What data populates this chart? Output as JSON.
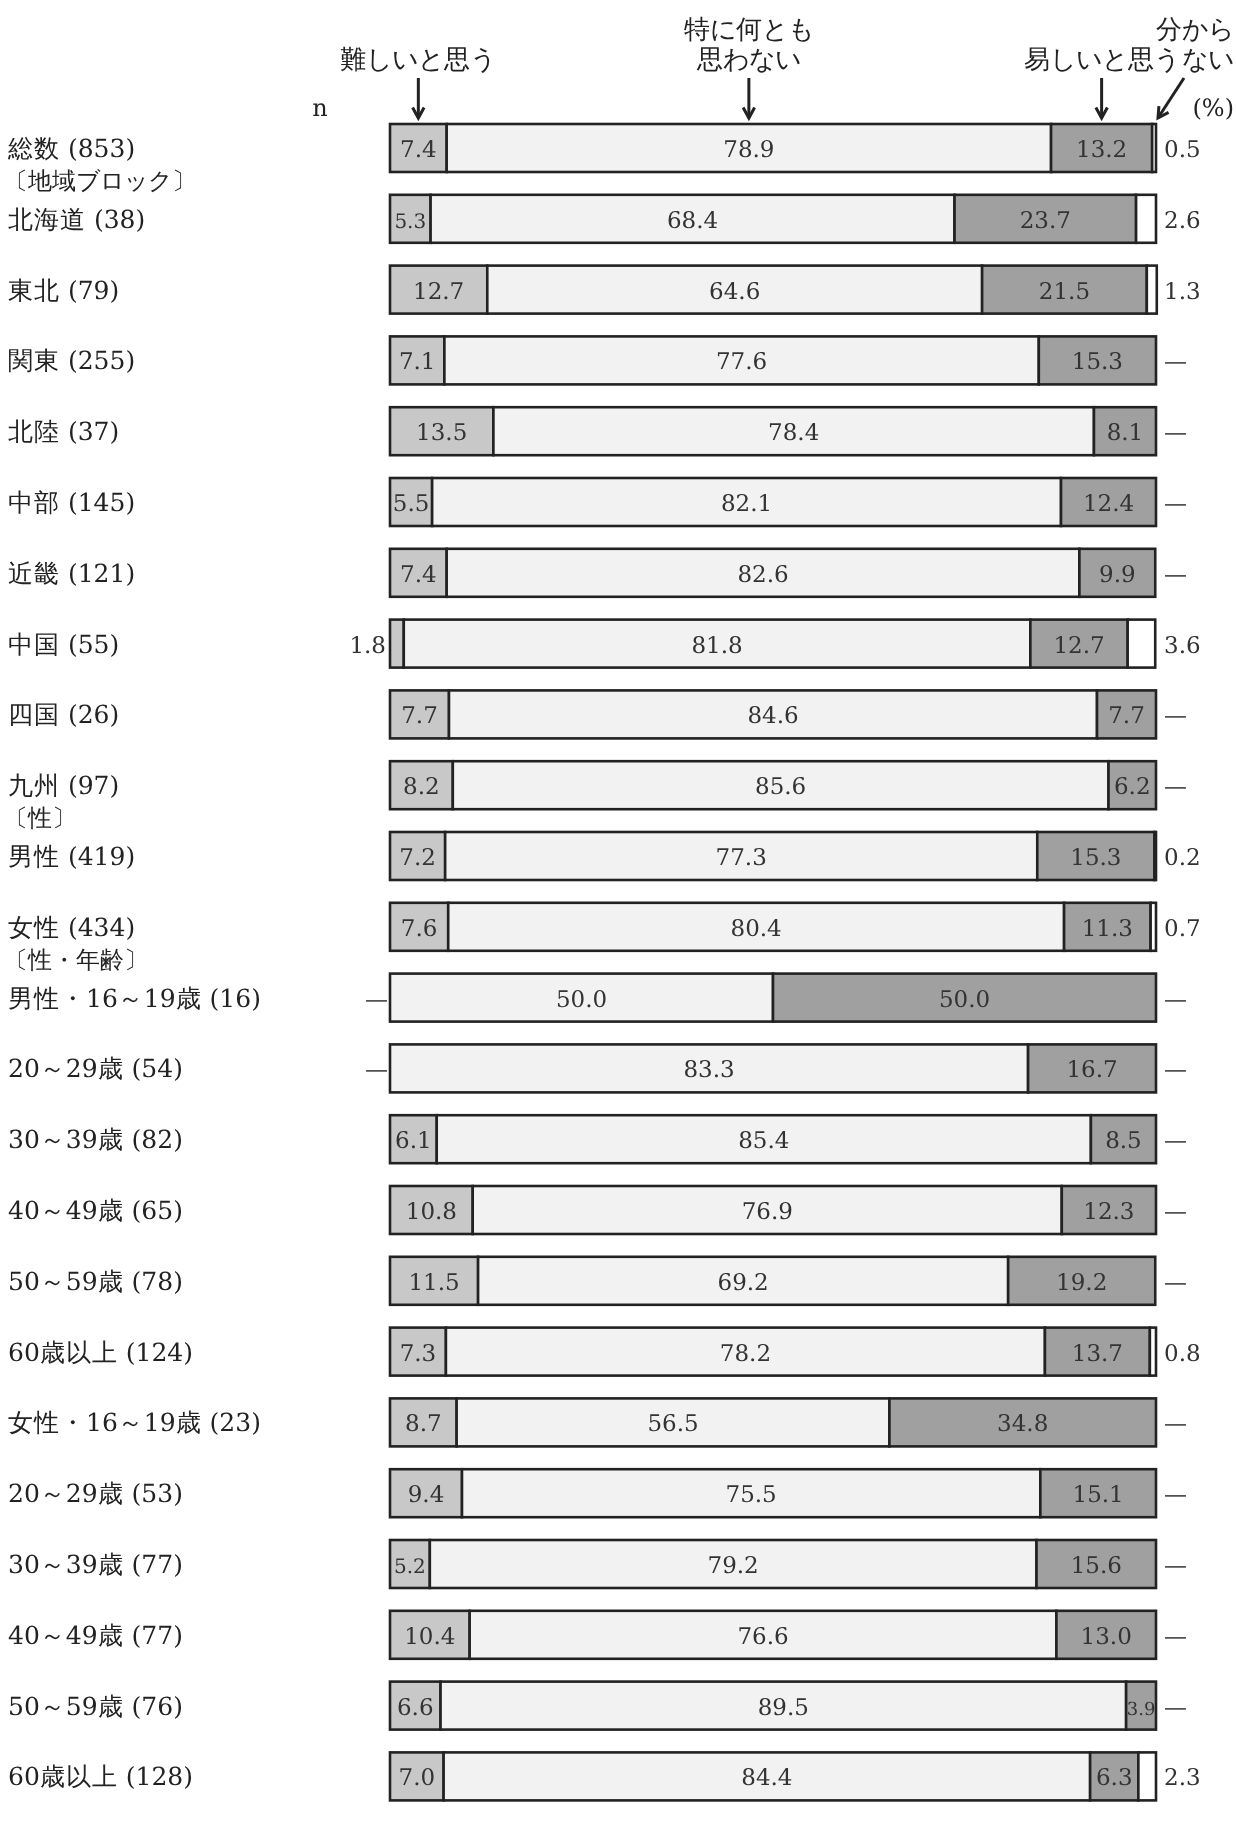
{
  "chart_data": {
    "type": "bar",
    "orientation": "horizontal",
    "stacked": true,
    "xlim": [
      0,
      100
    ],
    "legend": "top",
    "categories": [
      "総数 (853)",
      "北海道 (38)",
      "東北 (79)",
      "関東 (255)",
      "北陸 (37)",
      "中部 (145)",
      "近畿 (121)",
      "中国 (55)",
      "四国 (26)",
      "九州 (97)",
      "男性 (419)",
      "女性 (434)",
      "男性・16～19歳 (16)",
      "20～29歳 (54)",
      "30～39歳 (82)",
      "40～49歳 (65)",
      "50～59歳 (78)",
      "60歳以上 (124)",
      "女性・16～19歳 (23)",
      "20～29歳 (53)",
      "30～39歳 (77)",
      "40～49歳 (77)",
      "50～59歳 (76)",
      "60歳以上 (128)"
    ],
    "series": [
      {
        "name": "難しいと思う",
        "color": "#c8c8c8",
        "values": [
          7.4,
          5.3,
          12.7,
          7.1,
          13.5,
          5.5,
          7.4,
          1.8,
          7.7,
          8.2,
          7.2,
          7.6,
          0,
          0,
          6.1,
          10.8,
          11.5,
          7.3,
          8.7,
          9.4,
          5.2,
          10.4,
          6.6,
          7.0
        ],
        "value_labels": [
          "7.4",
          "5.3",
          "12.7",
          "7.1",
          "13.5",
          "5.5",
          "7.4",
          "1.8",
          "7.7",
          "8.2",
          "7.2",
          "7.6",
          "—",
          "—",
          "6.1",
          "10.8",
          "11.5",
          "7.3",
          "8.7",
          "9.4",
          "5.2",
          "10.4",
          "6.6",
          "7.0"
        ]
      },
      {
        "name": "特に何とも思わない",
        "color": "#f2f2f2",
        "values": [
          78.9,
          68.4,
          64.6,
          77.6,
          78.4,
          82.1,
          82.6,
          81.8,
          84.6,
          85.6,
          77.3,
          80.4,
          50.0,
          83.3,
          85.4,
          76.9,
          69.2,
          78.2,
          56.5,
          75.5,
          79.2,
          76.6,
          89.5,
          84.4
        ],
        "value_labels": [
          "78.9",
          "68.4",
          "64.6",
          "77.6",
          "78.4",
          "82.1",
          "82.6",
          "81.8",
          "84.6",
          "85.6",
          "77.3",
          "80.4",
          "50.0",
          "83.3",
          "85.4",
          "76.9",
          "69.2",
          "78.2",
          "56.5",
          "75.5",
          "79.2",
          "76.6",
          "89.5",
          "84.4"
        ]
      },
      {
        "name": "易しいと思う",
        "color": "#a0a0a0",
        "values": [
          13.2,
          23.7,
          21.5,
          15.3,
          8.1,
          12.4,
          9.9,
          12.7,
          7.7,
          6.2,
          15.3,
          11.3,
          50.0,
          16.7,
          8.5,
          12.3,
          19.2,
          13.7,
          34.8,
          15.1,
          15.6,
          13.0,
          3.9,
          6.3
        ],
        "value_labels": [
          "13.2",
          "23.7",
          "21.5",
          "15.3",
          "8.1",
          "12.4",
          "9.9",
          "12.7",
          "7.7",
          "6.2",
          "15.3",
          "11.3",
          "50.0",
          "16.7",
          "8.5",
          "12.3",
          "19.2",
          "13.7",
          "34.8",
          "15.1",
          "15.6",
          "13.0",
          "3.9",
          "6.3"
        ]
      },
      {
        "name": "分からない",
        "color": "#ffffff",
        "values": [
          0.5,
          2.6,
          1.3,
          0,
          0,
          0,
          0,
          3.6,
          0,
          0,
          0.2,
          0.7,
          0,
          0,
          0,
          0,
          0,
          0.8,
          0,
          0,
          0,
          0,
          0,
          2.3
        ],
        "value_labels": [
          "0.5",
          "2.6",
          "1.3",
          "—",
          "—",
          "—",
          "—",
          "3.6",
          "—",
          "—",
          "0.2",
          "0.7",
          "—",
          "—",
          "—",
          "—",
          "—",
          "0.8",
          "—",
          "—",
          "—",
          "—",
          "—",
          "2.3"
        ]
      }
    ],
    "annotations": [
      "n",
      "(%)",
      "〔地域ブロック〕",
      "〔性〕",
      "〔性・年齢〕"
    ]
  }
}
